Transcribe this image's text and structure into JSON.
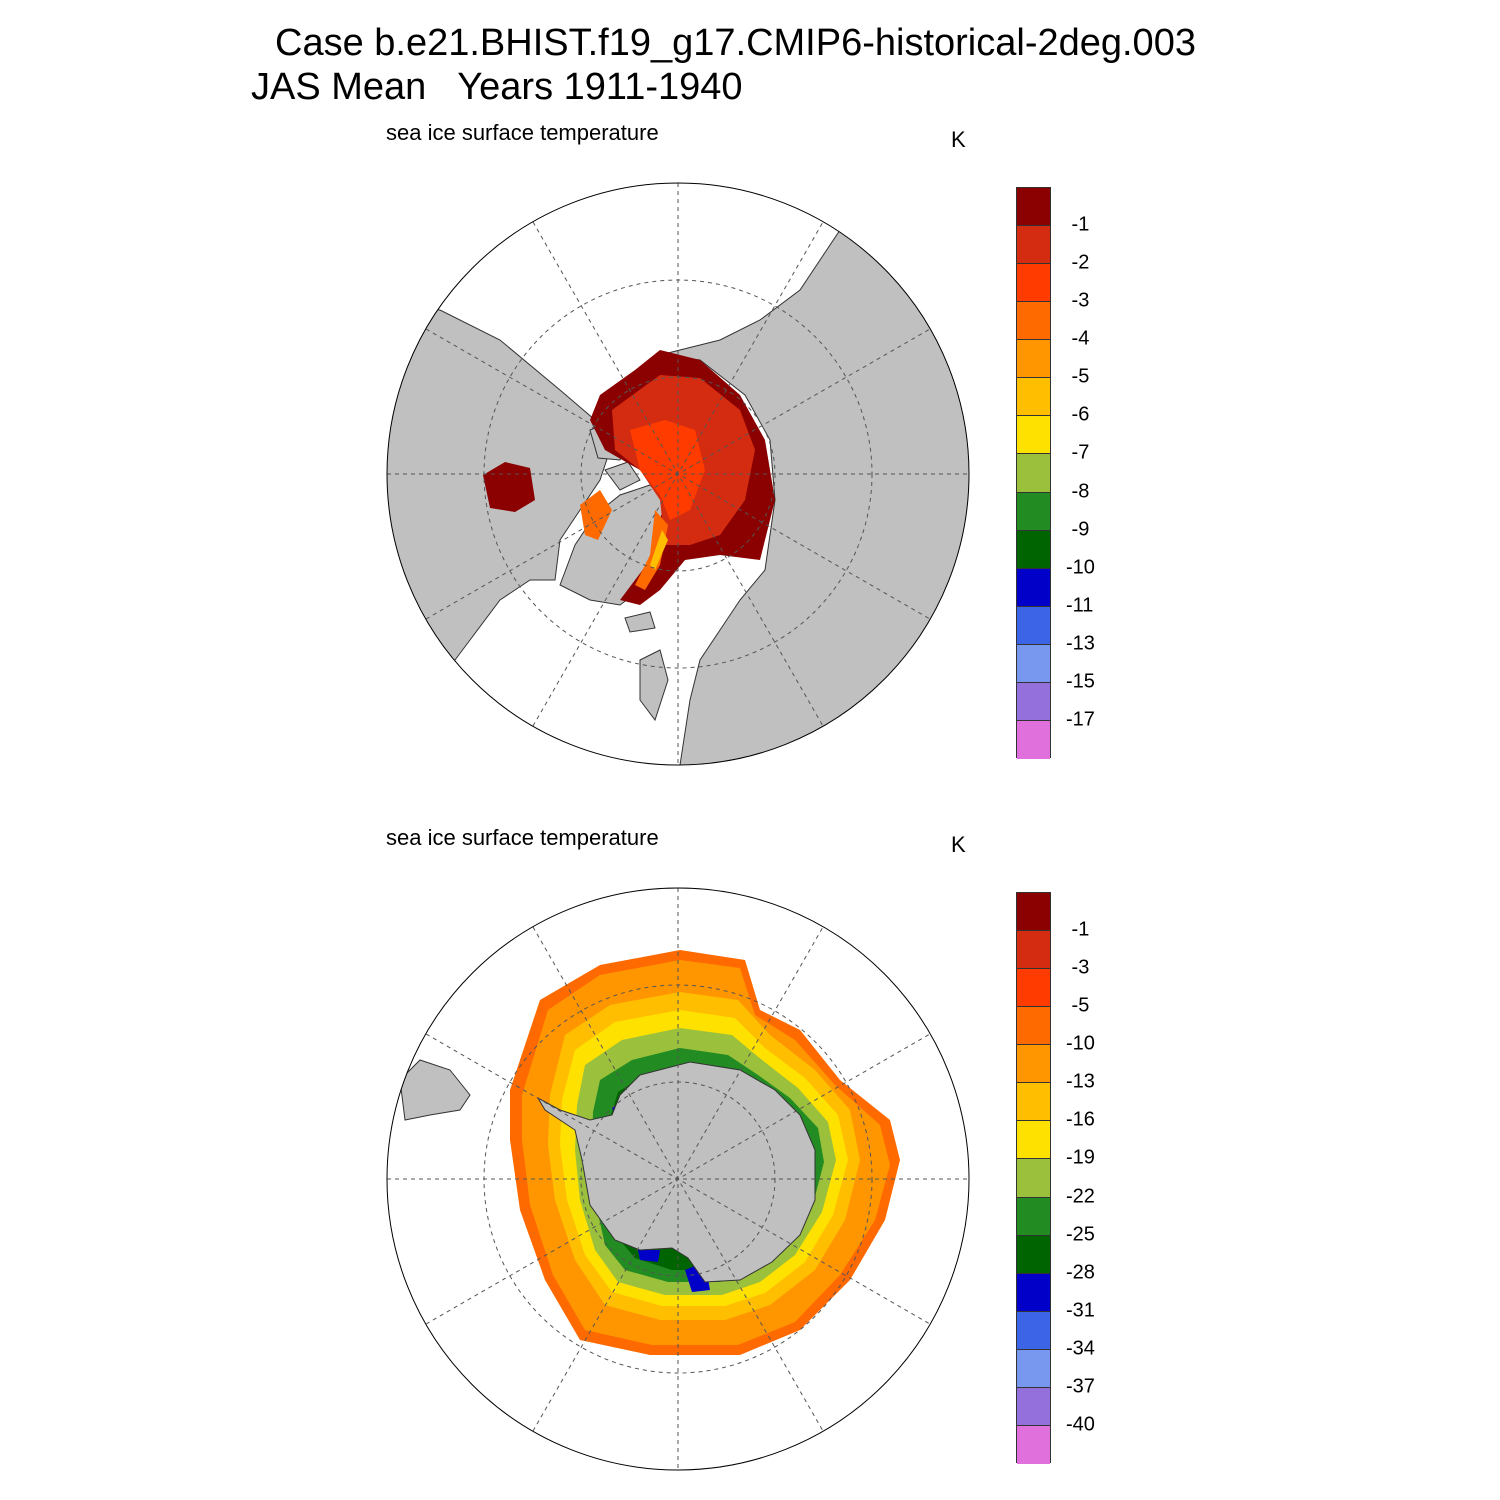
{
  "title": {
    "line1": "Case b.e21.BHIST.f19_g17.CMIP6-historical-2deg.003",
    "line2": "JAS Mean   Years 1911-1940"
  },
  "colors": {
    "land": "#c0c0c0",
    "ocean": "#ffffff",
    "palette": [
      "#8b0000",
      "#d42c10",
      "#ff3b00",
      "#ff6a00",
      "#ff9600",
      "#ffbe00",
      "#ffe100",
      "#9bc03c",
      "#228b22",
      "#006400",
      "#0000c8",
      "#3c64e6",
      "#7898f0",
      "#9370db",
      "#e070dc"
    ]
  },
  "panels": [
    {
      "id": "arctic",
      "hemisphere": "north",
      "label": "sea ice surface temperature",
      "units": "K",
      "colorbar": {
        "labels": [
          "-1",
          "-2",
          "-3",
          "-4",
          "-5",
          "-6",
          "-7",
          "-8",
          "-9",
          "-10",
          "-11",
          "-13",
          "-15",
          "-17"
        ]
      }
    },
    {
      "id": "antarctic",
      "hemisphere": "south",
      "label": "sea ice surface temperature",
      "units": "K",
      "colorbar": {
        "labels": [
          "-1",
          "-3",
          "-5",
          "-10",
          "-13",
          "-16",
          "-19",
          "-22",
          "-25",
          "-28",
          "-31",
          "-34",
          "-37",
          "-40"
        ]
      }
    }
  ]
}
